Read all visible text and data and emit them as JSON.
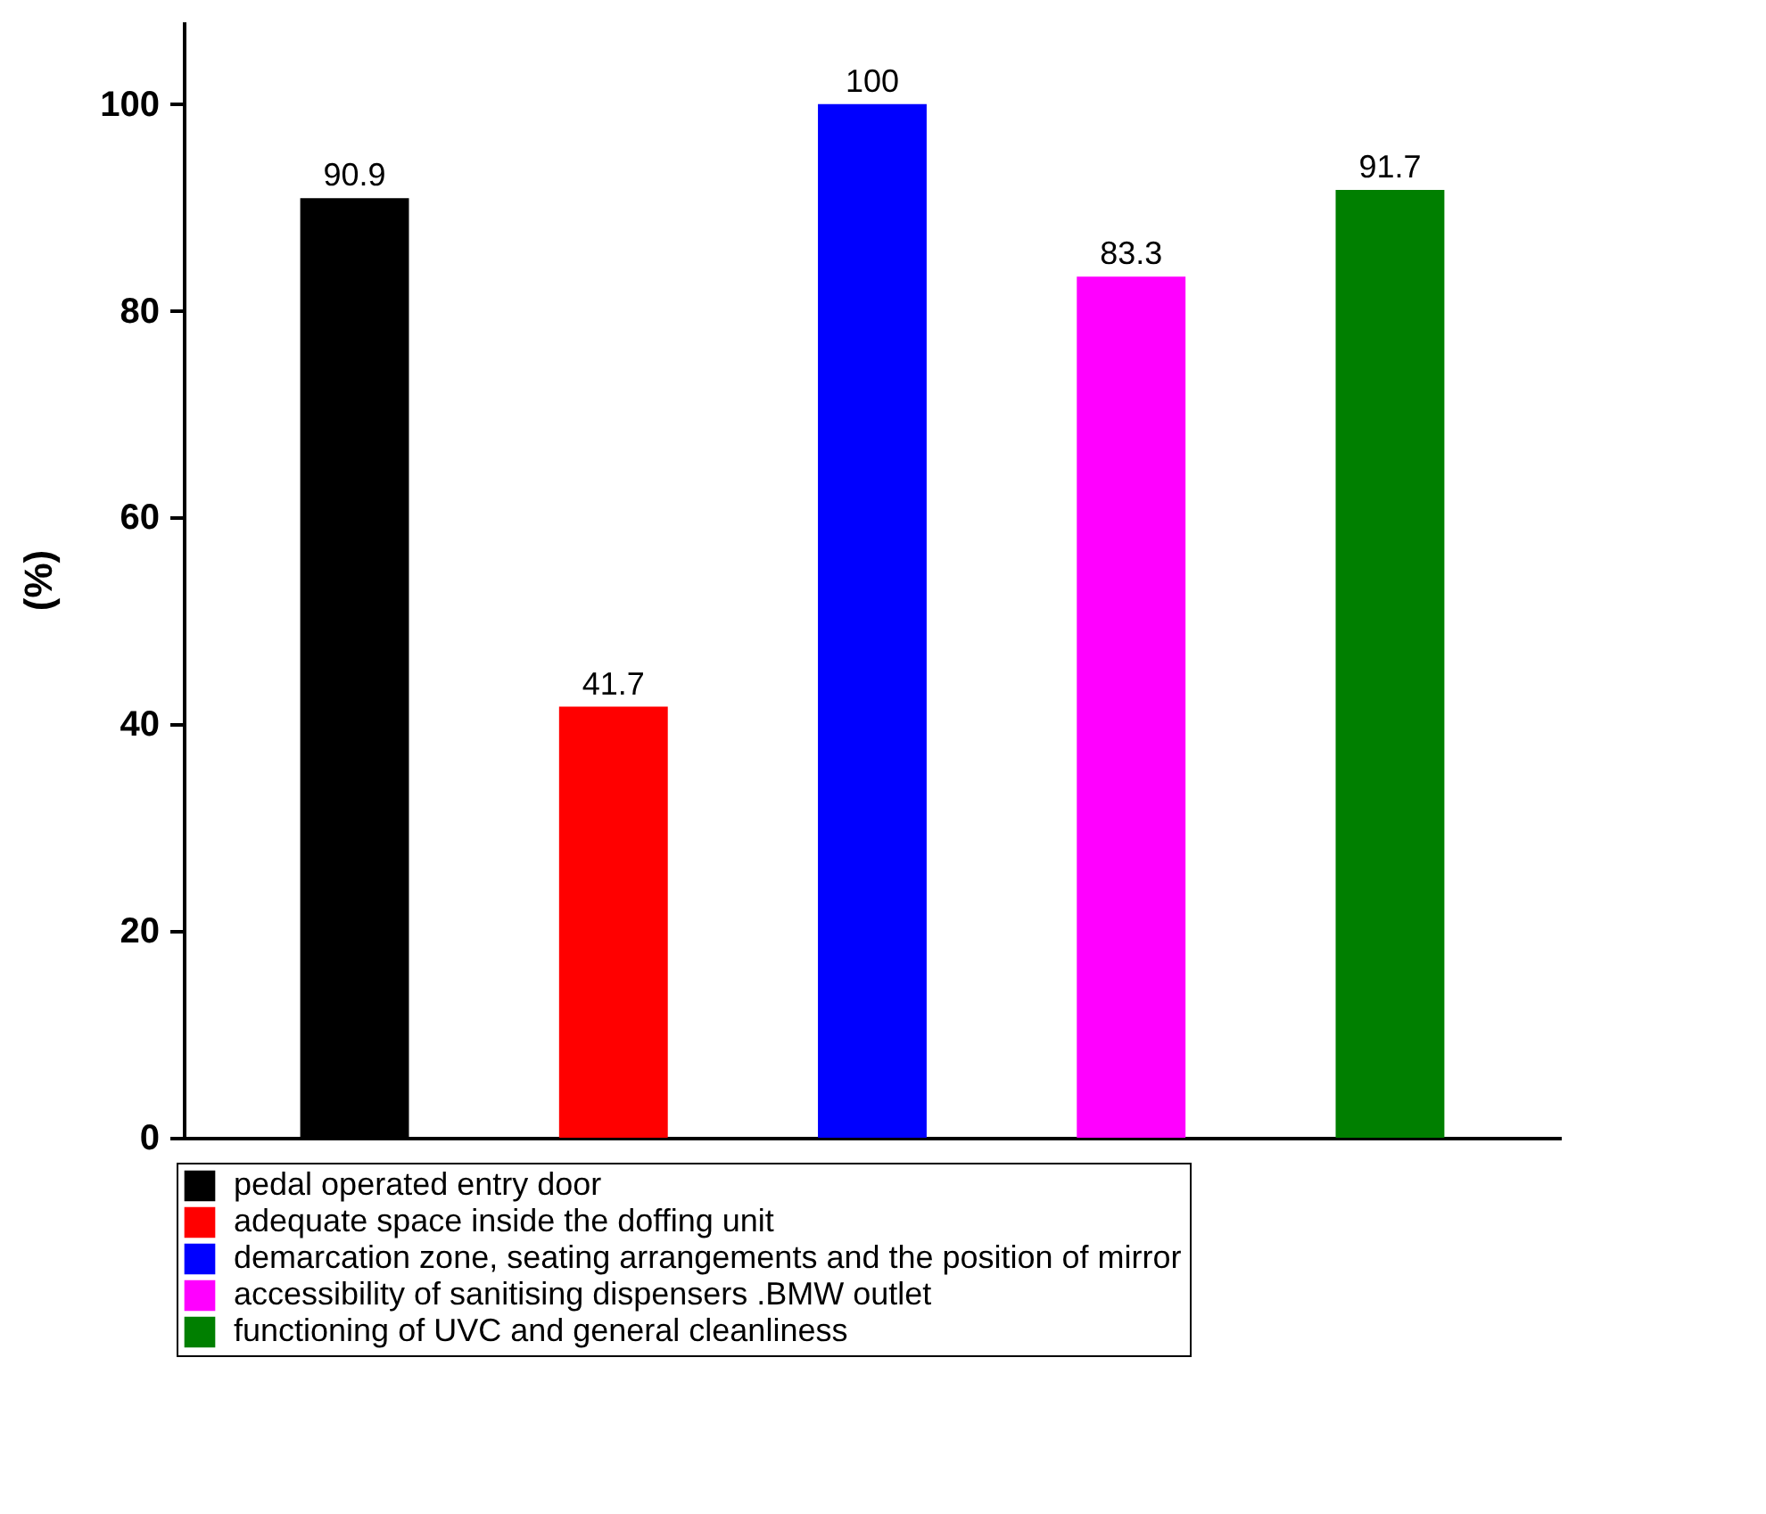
{
  "chart_data": {
    "type": "bar",
    "ylabel": "(%)",
    "categories": [
      null,
      null,
      null,
      null,
      null
    ],
    "series": [
      {
        "name": "pedal operated entry door",
        "color": "#000000",
        "values": [
          90.9,
          null,
          null,
          null,
          null
        ]
      },
      {
        "name": "adequate space inside the doffing unit",
        "color": "#ff0000",
        "values": [
          null,
          41.7,
          null,
          null,
          null
        ]
      },
      {
        "name": "demarcation zone, seating arrangements and the position of mirror",
        "color": "#0000ff",
        "values": [
          null,
          null,
          100,
          null,
          null
        ]
      },
      {
        "name": "accessibility of sanitising dispensers .BMW outlet",
        "color": "#ff00ff",
        "values": [
          null,
          null,
          null,
          83.3,
          null
        ]
      },
      {
        "name": "functioning of UVC and general cleanliness",
        "color": "#007f00",
        "values": [
          null,
          null,
          null,
          null,
          91.7
        ]
      }
    ],
    "ylim": [
      0,
      108
    ],
    "yticks": [
      0,
      20,
      40,
      60,
      80,
      100
    ],
    "data_labels": true,
    "legend": "bottom"
  }
}
